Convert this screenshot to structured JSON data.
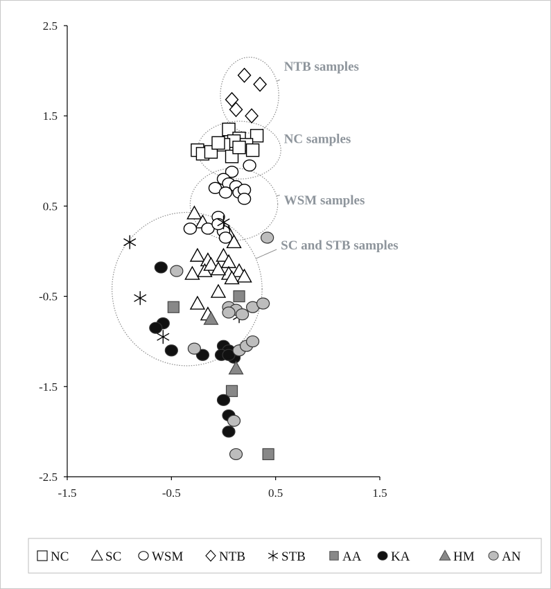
{
  "chart_data": {
    "type": "scatter",
    "title": "",
    "xlabel": "",
    "ylabel": "",
    "xlim": [
      -1.5,
      1.5
    ],
    "ylim": [
      -2.5,
      2.5
    ],
    "x_ticks": [
      "-1.5",
      "-0.5",
      "0.5",
      "1.5"
    ],
    "y_ticks": [
      "2.5",
      "1.5",
      "0.5",
      "-0.5",
      "-1.5",
      "-2.5"
    ],
    "grid": false,
    "legend_position": "bottom",
    "series": [
      {
        "name": "NC",
        "marker": "square-open",
        "color": "#000000",
        "points": [
          [
            0.05,
            1.35
          ],
          [
            0.32,
            1.28
          ],
          [
            0.15,
            1.25
          ],
          [
            -0.25,
            1.12
          ],
          [
            -0.2,
            1.08
          ],
          [
            -0.12,
            1.1
          ],
          [
            0.1,
            1.22
          ],
          [
            0.0,
            1.18
          ],
          [
            0.22,
            1.18
          ],
          [
            0.28,
            1.12
          ],
          [
            0.08,
            1.05
          ],
          [
            -0.05,
            1.2
          ],
          [
            0.15,
            1.15
          ]
        ]
      },
      {
        "name": "SC",
        "marker": "triangle-open",
        "color": "#000000",
        "points": [
          [
            -0.28,
            0.42
          ],
          [
            -0.2,
            0.32
          ],
          [
            0.05,
            0.2
          ],
          [
            0.1,
            0.1
          ],
          [
            -0.25,
            -0.05
          ],
          [
            -0.15,
            -0.1
          ],
          [
            0.0,
            -0.05
          ],
          [
            -0.3,
            -0.25
          ],
          [
            -0.18,
            -0.22
          ],
          [
            -0.12,
            -0.15
          ],
          [
            0.05,
            -0.12
          ],
          [
            0.15,
            -0.22
          ],
          [
            0.2,
            -0.28
          ],
          [
            0.05,
            -0.25
          ],
          [
            -0.05,
            -0.2
          ],
          [
            -0.05,
            -0.45
          ],
          [
            -0.25,
            -0.58
          ],
          [
            -0.15,
            -0.7
          ],
          [
            0.08,
            -0.3
          ]
        ]
      },
      {
        "name": "WSM",
        "marker": "circle-open",
        "color": "#000000",
        "points": [
          [
            0.08,
            0.88
          ],
          [
            0.25,
            0.95
          ],
          [
            0.0,
            0.8
          ],
          [
            0.05,
            0.75
          ],
          [
            0.12,
            0.72
          ],
          [
            -0.08,
            0.7
          ],
          [
            0.15,
            0.65
          ],
          [
            0.2,
            0.68
          ],
          [
            0.2,
            0.58
          ],
          [
            0.02,
            0.65
          ],
          [
            -0.05,
            0.38
          ],
          [
            -0.32,
            0.25
          ],
          [
            -0.15,
            0.25
          ],
          [
            0.0,
            0.22
          ],
          [
            0.02,
            0.15
          ],
          [
            -0.05,
            0.3
          ]
        ]
      },
      {
        "name": "NTB",
        "marker": "diamond-open",
        "color": "#000000",
        "points": [
          [
            0.2,
            1.95
          ],
          [
            0.35,
            1.85
          ],
          [
            0.08,
            1.68
          ],
          [
            0.12,
            1.57
          ],
          [
            0.27,
            1.5
          ]
        ]
      },
      {
        "name": "STB",
        "marker": "asterisk",
        "color": "#000000",
        "points": [
          [
            -0.9,
            0.1
          ],
          [
            -0.8,
            -0.52
          ],
          [
            -0.58,
            -0.95
          ],
          [
            0.0,
            0.32
          ],
          [
            0.15,
            -0.72
          ]
        ]
      },
      {
        "name": "AA",
        "marker": "square-filled",
        "color": "#888888",
        "points": [
          [
            -0.48,
            -0.62
          ],
          [
            0.15,
            -0.5
          ],
          [
            0.08,
            -1.55
          ],
          [
            0.43,
            -2.25
          ]
        ]
      },
      {
        "name": "KA",
        "marker": "circle-filled",
        "color": "#111111",
        "points": [
          [
            -0.6,
            -0.18
          ],
          [
            -0.58,
            -0.8
          ],
          [
            -0.65,
            -0.85
          ],
          [
            -0.5,
            -1.1
          ],
          [
            -0.2,
            -1.15
          ],
          [
            0.0,
            -1.05
          ],
          [
            0.05,
            -1.1
          ],
          [
            -0.02,
            -1.15
          ],
          [
            0.1,
            -1.18
          ],
          [
            0.05,
            -1.15
          ],
          [
            0.0,
            -1.65
          ],
          [
            0.05,
            -1.82
          ],
          [
            0.05,
            -2.0
          ]
        ]
      },
      {
        "name": "HM",
        "marker": "triangle-filled",
        "color": "#888888",
        "points": [
          [
            -0.12,
            -0.75
          ],
          [
            0.12,
            -1.3
          ]
        ]
      },
      {
        "name": "AN",
        "marker": "circle-filled",
        "color": "#bdbdbd",
        "points": [
          [
            0.42,
            0.15
          ],
          [
            -0.45,
            -0.22
          ],
          [
            0.05,
            -0.62
          ],
          [
            0.12,
            -0.65
          ],
          [
            0.18,
            -0.7
          ],
          [
            0.28,
            -0.62
          ],
          [
            0.38,
            -0.58
          ],
          [
            0.05,
            -0.68
          ],
          [
            -0.28,
            -1.08
          ],
          [
            0.15,
            -1.1
          ],
          [
            0.22,
            -1.05
          ],
          [
            0.28,
            -1.0
          ],
          [
            0.1,
            -1.88
          ],
          [
            0.12,
            -2.25
          ]
        ]
      }
    ],
    "annotations": [
      {
        "label": "NTB samples",
        "ellipse": {
          "cx": 0.25,
          "cy": 1.73,
          "rx": 0.28,
          "ry": 0.42
        },
        "text_at": [
          0.58,
          2.0
        ],
        "leader_to": [
          0.58,
          1.9
        ]
      },
      {
        "label": "NC samples",
        "ellipse": {
          "cx": 0.15,
          "cy": 1.12,
          "rx": 0.4,
          "ry": 0.32
        },
        "text_at": [
          0.58,
          1.2
        ],
        "leader_to": [
          0.58,
          1.2
        ]
      },
      {
        "label": "WSM samples",
        "ellipse": {
          "cx": 0.1,
          "cy": 0.52,
          "rx": 0.42,
          "ry": 0.4
        },
        "text_at": [
          0.58,
          0.52
        ],
        "leader_to": [
          0.58,
          0.62
        ]
      },
      {
        "label": "SC and STB samples",
        "ellipse": {
          "cx": -0.35,
          "cy": -0.42,
          "rx": 0.72,
          "ry": 0.85
        },
        "text_at": [
          0.55,
          0.02
        ],
        "leader_to": [
          0.55,
          0.02
        ]
      }
    ]
  },
  "legend": {
    "items": [
      {
        "marker": "square-open",
        "label": "NC"
      },
      {
        "marker": "triangle-open",
        "label": "SC"
      },
      {
        "marker": "circle-open",
        "label": "WSM"
      },
      {
        "marker": "diamond-open",
        "label": "NTB"
      },
      {
        "marker": "asterisk",
        "label": "STB"
      },
      {
        "marker": "square-filled",
        "label": "AA"
      },
      {
        "marker": "circle-filled-dark",
        "label": "KA"
      },
      {
        "marker": "triangle-filled",
        "label": "HM"
      },
      {
        "marker": "circle-filled-light",
        "label": "AN"
      }
    ]
  }
}
